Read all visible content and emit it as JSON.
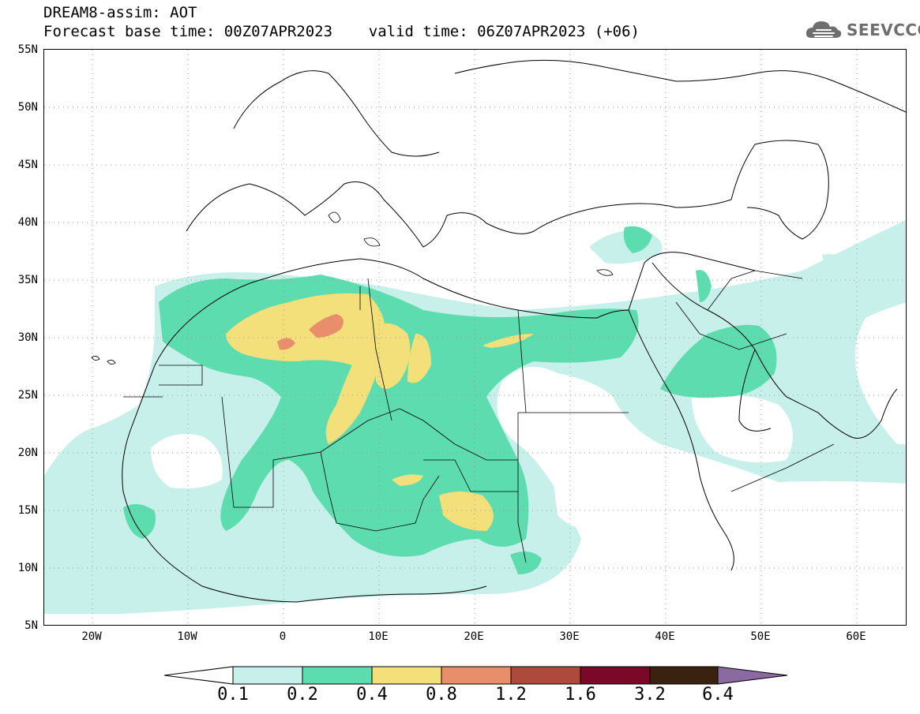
{
  "header": {
    "line1": "DREAM8-assim: AOT",
    "line2": "Forecast base time: 00Z07APR2023    valid time: 06Z07APR2023 (+06)"
  },
  "logo": {
    "text": "SEEVCCC",
    "icon": "cloud-icon"
  },
  "map": {
    "lat_labels": [
      "55N",
      "50N",
      "45N",
      "40N",
      "35N",
      "30N",
      "25N",
      "20N",
      "15N",
      "10N",
      "5N"
    ],
    "lon_labels": [
      "20W",
      "10W",
      "0",
      "10E",
      "20E",
      "30E",
      "40E",
      "50E",
      "60E"
    ]
  },
  "colorbar": {
    "labels": [
      "0.1",
      "0.2",
      "0.4",
      "0.8",
      "1.2",
      "1.6",
      "3.2",
      "6.4"
    ],
    "colors": [
      "#ffffff",
      "#c8f0ea",
      "#5ddcaf",
      "#f4e07a",
      "#e88e6a",
      "#ad4a3c",
      "#7a0828",
      "#3a2210",
      "#8a6aa0"
    ]
  },
  "colors": {
    "level1": "#c8f0ea",
    "level2": "#5ddcaf",
    "level3": "#f4e07a",
    "level4": "#e88e6a"
  }
}
